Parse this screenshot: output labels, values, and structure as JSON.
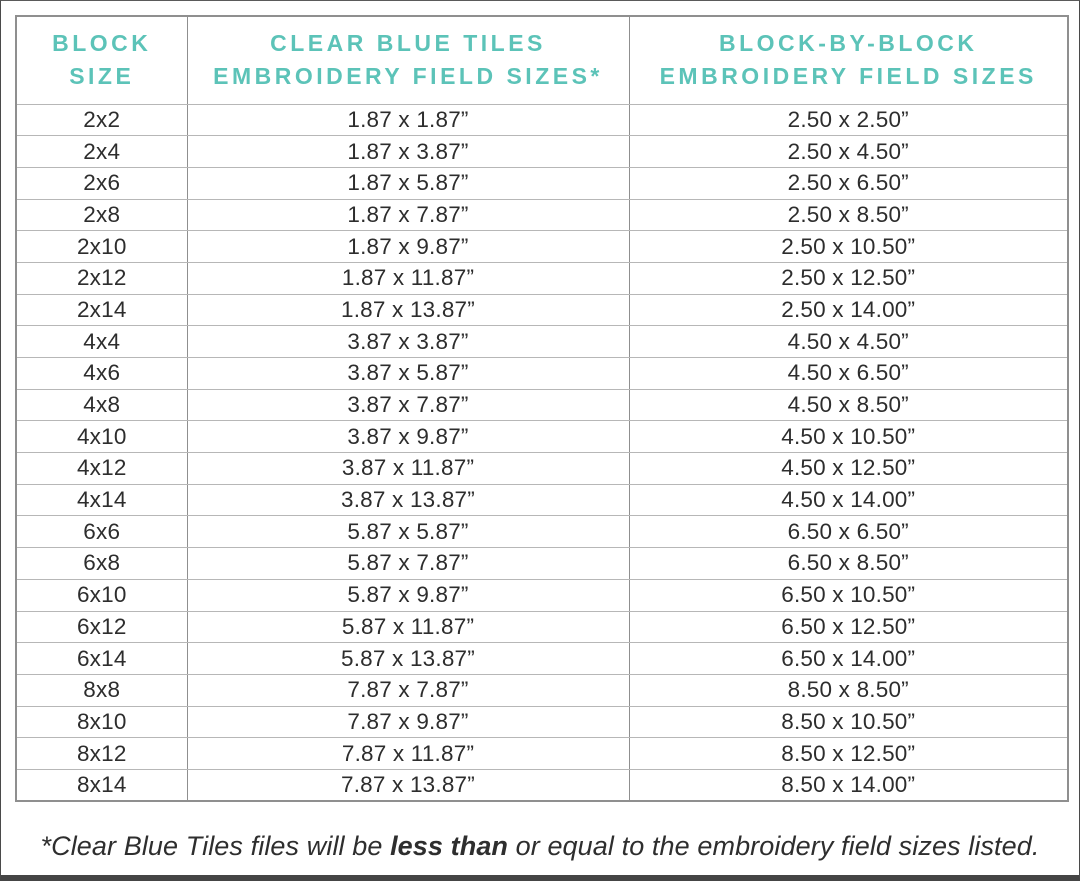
{
  "colors": {
    "accent": "#5cc3b8",
    "frame": "#454545",
    "row_line": "#b7b7b7",
    "column_line": "#8f8f8f"
  },
  "table": {
    "headers": [
      {
        "line1": "BLOCK",
        "line2": "SIZE"
      },
      {
        "line1": "CLEAR BLUE TILES",
        "line2": "EMBROIDERY FIELD SIZES*"
      },
      {
        "line1": "BLOCK-BY-BLOCK",
        "line2": "EMBROIDERY FIELD SIZES"
      }
    ],
    "rows": [
      {
        "block_size": "2x2",
        "clear_blue_tiles": "1.87 x 1.87”",
        "block_by_block": "2.50 x 2.50”"
      },
      {
        "block_size": "2x4",
        "clear_blue_tiles": "1.87 x 3.87”",
        "block_by_block": "2.50 x 4.50”"
      },
      {
        "block_size": "2x6",
        "clear_blue_tiles": "1.87 x 5.87”",
        "block_by_block": "2.50 x 6.50”"
      },
      {
        "block_size": "2x8",
        "clear_blue_tiles": "1.87 x 7.87”",
        "block_by_block": "2.50 x 8.50”"
      },
      {
        "block_size": "2x10",
        "clear_blue_tiles": "1.87 x 9.87”",
        "block_by_block": "2.50 x 10.50”"
      },
      {
        "block_size": "2x12",
        "clear_blue_tiles": "1.87 x 11.87”",
        "block_by_block": "2.50 x 12.50”"
      },
      {
        "block_size": "2x14",
        "clear_blue_tiles": "1.87 x 13.87”",
        "block_by_block": "2.50 x 14.00”"
      },
      {
        "block_size": "4x4",
        "clear_blue_tiles": "3.87 x 3.87”",
        "block_by_block": "4.50 x 4.50”"
      },
      {
        "block_size": "4x6",
        "clear_blue_tiles": "3.87 x 5.87”",
        "block_by_block": "4.50 x 6.50”"
      },
      {
        "block_size": "4x8",
        "clear_blue_tiles": "3.87 x 7.87”",
        "block_by_block": "4.50 x 8.50”"
      },
      {
        "block_size": "4x10",
        "clear_blue_tiles": "3.87 x 9.87”",
        "block_by_block": "4.50 x 10.50”"
      },
      {
        "block_size": "4x12",
        "clear_blue_tiles": "3.87 x 11.87”",
        "block_by_block": "4.50 x 12.50”"
      },
      {
        "block_size": "4x14",
        "clear_blue_tiles": "3.87 x 13.87”",
        "block_by_block": "4.50 x 14.00”"
      },
      {
        "block_size": "6x6",
        "clear_blue_tiles": "5.87 x 5.87”",
        "block_by_block": "6.50 x 6.50”"
      },
      {
        "block_size": "6x8",
        "clear_blue_tiles": "5.87 x 7.87”",
        "block_by_block": "6.50 x 8.50”"
      },
      {
        "block_size": "6x10",
        "clear_blue_tiles": "5.87 x 9.87”",
        "block_by_block": "6.50 x 10.50”"
      },
      {
        "block_size": "6x12",
        "clear_blue_tiles": "5.87 x 11.87”",
        "block_by_block": "6.50 x 12.50”"
      },
      {
        "block_size": "6x14",
        "clear_blue_tiles": "5.87 x 13.87”",
        "block_by_block": "6.50 x 14.00”"
      },
      {
        "block_size": "8x8",
        "clear_blue_tiles": "7.87 x 7.87”",
        "block_by_block": "8.50 x 8.50”"
      },
      {
        "block_size": "8x10",
        "clear_blue_tiles": "7.87 x 9.87”",
        "block_by_block": "8.50 x 10.50”"
      },
      {
        "block_size": "8x12",
        "clear_blue_tiles": "7.87 x 11.87”",
        "block_by_block": "8.50 x 12.50”"
      },
      {
        "block_size": "8x14",
        "clear_blue_tiles": "7.87 x 13.87”",
        "block_by_block": "8.50 x 14.00”"
      }
    ]
  },
  "footnote": {
    "prefix": "*Clear Blue Tiles files will be ",
    "bold": "less than",
    "suffix": " or equal to the embroidery field sizes listed."
  }
}
